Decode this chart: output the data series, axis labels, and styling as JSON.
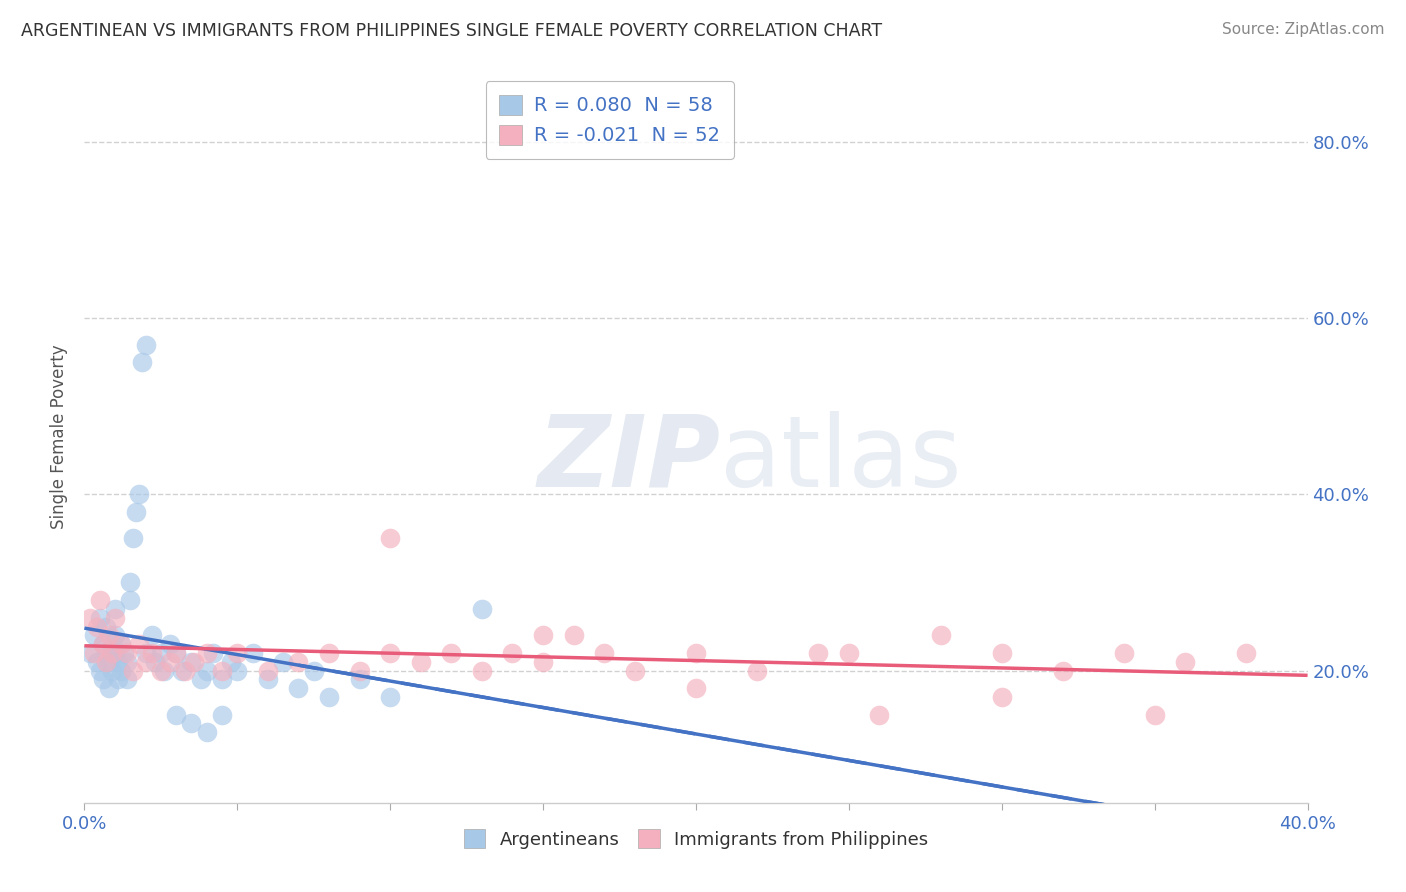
{
  "title": "ARGENTINEAN VS IMMIGRANTS FROM PHILIPPINES SINGLE FEMALE POVERTY CORRELATION CHART",
  "source": "Source: ZipAtlas.com",
  "ylabel": "Single Female Poverty",
  "ytick_vals": [
    0.2,
    0.4,
    0.6,
    0.8
  ],
  "xlim": [
    0.0,
    0.4
  ],
  "ylim": [
    0.05,
    0.88
  ],
  "argentinean_color": "#a8c8e8",
  "philippines_color": "#f4b0be",
  "argentinean_line_color": "#4472c4",
  "philippines_line_color": "#e85c7a",
  "background_color": "#ffffff",
  "R_arg": 0.08,
  "N_arg": 58,
  "R_phil": -0.021,
  "N_phil": 52,
  "arg_x": [
    0.002,
    0.003,
    0.004,
    0.005,
    0.005,
    0.006,
    0.006,
    0.007,
    0.007,
    0.008,
    0.008,
    0.009,
    0.009,
    0.01,
    0.01,
    0.01,
    0.011,
    0.011,
    0.012,
    0.012,
    0.013,
    0.014,
    0.014,
    0.015,
    0.015,
    0.016,
    0.017,
    0.018,
    0.019,
    0.02,
    0.02,
    0.022,
    0.023,
    0.025,
    0.026,
    0.028,
    0.03,
    0.032,
    0.035,
    0.038,
    0.04,
    0.042,
    0.045,
    0.048,
    0.05,
    0.055,
    0.06,
    0.065,
    0.07,
    0.075,
    0.08,
    0.09,
    0.1,
    0.03,
    0.035,
    0.04,
    0.045,
    0.13
  ],
  "arg_y": [
    0.22,
    0.24,
    0.21,
    0.26,
    0.2,
    0.23,
    0.19,
    0.25,
    0.22,
    0.21,
    0.18,
    0.23,
    0.2,
    0.27,
    0.24,
    0.22,
    0.21,
    0.19,
    0.23,
    0.2,
    0.22,
    0.21,
    0.19,
    0.3,
    0.28,
    0.35,
    0.38,
    0.4,
    0.55,
    0.57,
    0.22,
    0.24,
    0.21,
    0.22,
    0.2,
    0.23,
    0.22,
    0.2,
    0.21,
    0.19,
    0.2,
    0.22,
    0.19,
    0.21,
    0.2,
    0.22,
    0.19,
    0.21,
    0.18,
    0.2,
    0.17,
    0.19,
    0.17,
    0.15,
    0.14,
    0.13,
    0.15,
    0.27
  ],
  "phil_x": [
    0.002,
    0.003,
    0.004,
    0.005,
    0.006,
    0.007,
    0.008,
    0.009,
    0.01,
    0.012,
    0.014,
    0.016,
    0.018,
    0.02,
    0.022,
    0.025,
    0.028,
    0.03,
    0.033,
    0.036,
    0.04,
    0.045,
    0.05,
    0.06,
    0.07,
    0.08,
    0.09,
    0.1,
    0.11,
    0.12,
    0.13,
    0.14,
    0.15,
    0.16,
    0.17,
    0.18,
    0.2,
    0.22,
    0.24,
    0.26,
    0.28,
    0.3,
    0.32,
    0.34,
    0.36,
    0.38,
    0.1,
    0.15,
    0.2,
    0.25,
    0.3,
    0.35
  ],
  "phil_y": [
    0.26,
    0.22,
    0.25,
    0.28,
    0.23,
    0.21,
    0.24,
    0.22,
    0.26,
    0.23,
    0.22,
    0.2,
    0.23,
    0.21,
    0.22,
    0.2,
    0.21,
    0.22,
    0.2,
    0.21,
    0.22,
    0.2,
    0.22,
    0.2,
    0.21,
    0.22,
    0.2,
    0.22,
    0.21,
    0.22,
    0.2,
    0.22,
    0.21,
    0.24,
    0.22,
    0.2,
    0.22,
    0.2,
    0.22,
    0.15,
    0.24,
    0.22,
    0.2,
    0.22,
    0.21,
    0.22,
    0.35,
    0.24,
    0.18,
    0.22,
    0.17,
    0.15
  ]
}
